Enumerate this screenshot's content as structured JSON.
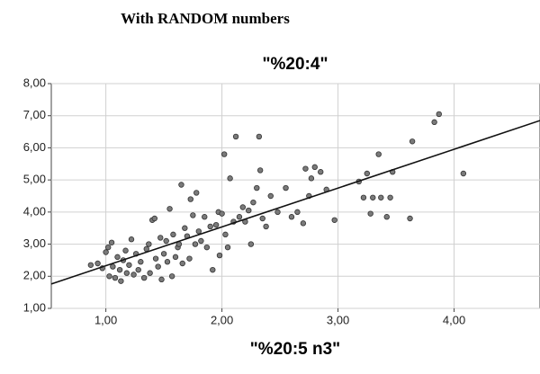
{
  "header": "With RANDOM numbers",
  "chart_data": {
    "type": "scatter",
    "title": "\"%20:4\"",
    "x_label": "\"%20:5 n3\"",
    "xlim": [
      0.53,
      4.74
    ],
    "ylim": [
      1,
      8
    ],
    "xticks": [
      {
        "value": 1,
        "label": "1,00"
      },
      {
        "value": 2,
        "label": "2,00"
      },
      {
        "value": 3,
        "label": "3,00"
      },
      {
        "value": 4,
        "label": "4,00"
      }
    ],
    "yticks": [
      {
        "value": 1,
        "label": "1,00"
      },
      {
        "value": 2,
        "label": "2,00"
      },
      {
        "value": 3,
        "label": "3,00"
      },
      {
        "value": 4,
        "label": "4,00"
      },
      {
        "value": 5,
        "label": "5,00"
      },
      {
        "value": 6,
        "label": "6,00"
      },
      {
        "value": 7,
        "label": "7,00"
      },
      {
        "value": 8,
        "label": "8,00"
      }
    ],
    "grid": true,
    "color": "#7a7a7a",
    "x": [
      0.87,
      0.93,
      0.97,
      1.0,
      1.02,
      1.03,
      1.05,
      1.06,
      1.08,
      1.1,
      1.12,
      1.13,
      1.15,
      1.17,
      1.18,
      1.2,
      1.22,
      1.24,
      1.26,
      1.28,
      1.3,
      1.33,
      1.35,
      1.37,
      1.38,
      1.4,
      1.42,
      1.43,
      1.45,
      1.47,
      1.48,
      1.5,
      1.52,
      1.53,
      1.55,
      1.57,
      1.58,
      1.6,
      1.62,
      1.63,
      1.65,
      1.66,
      1.68,
      1.7,
      1.72,
      1.73,
      1.75,
      1.77,
      1.78,
      1.8,
      1.82,
      1.85,
      1.87,
      1.9,
      1.92,
      1.95,
      1.97,
      1.98,
      2.0,
      2.02,
      2.03,
      2.05,
      2.07,
      2.1,
      2.12,
      2.15,
      2.18,
      2.2,
      2.23,
      2.25,
      2.27,
      2.3,
      2.32,
      2.33,
      2.35,
      2.38,
      2.42,
      2.48,
      2.55,
      2.6,
      2.65,
      2.7,
      2.72,
      2.75,
      2.77,
      2.8,
      2.85,
      2.9,
      2.97,
      3.18,
      3.22,
      3.25,
      3.28,
      3.3,
      3.35,
      3.37,
      3.42,
      3.45,
      3.47,
      3.62,
      3.64,
      3.83,
      3.87,
      4.08
    ],
    "values": [
      2.35,
      2.4,
      2.25,
      2.75,
      2.9,
      2.0,
      3.05,
      2.3,
      1.95,
      2.6,
      2.2,
      1.85,
      2.5,
      2.8,
      2.1,
      2.35,
      3.15,
      2.05,
      2.7,
      2.2,
      2.45,
      1.95,
      2.85,
      3.0,
      2.1,
      3.75,
      3.8,
      2.55,
      2.3,
      3.2,
      1.9,
      2.7,
      3.1,
      2.45,
      4.1,
      2.0,
      3.3,
      2.6,
      2.9,
      3.0,
      4.85,
      2.4,
      3.5,
      3.25,
      2.55,
      4.4,
      3.9,
      3.0,
      4.6,
      3.4,
      3.1,
      3.85,
      2.9,
      3.55,
      2.2,
      3.6,
      4.0,
      2.65,
      3.95,
      5.8,
      3.3,
      2.9,
      5.05,
      3.7,
      6.35,
      3.85,
      4.15,
      3.7,
      4.05,
      3.0,
      4.3,
      4.75,
      6.35,
      5.3,
      3.8,
      3.55,
      4.5,
      4.0,
      4.75,
      3.85,
      4.0,
      3.65,
      5.35,
      4.5,
      5.05,
      5.4,
      5.25,
      4.7,
      3.75,
      4.95,
      4.45,
      5.2,
      3.95,
      4.45,
      5.8,
      4.45,
      3.85,
      4.45,
      5.25,
      3.8,
      6.2,
      6.8,
      7.05,
      5.2
    ],
    "fit_line": {
      "x": [
        0.53,
        4.74
      ],
      "y": [
        1.76,
        6.85
      ]
    }
  }
}
